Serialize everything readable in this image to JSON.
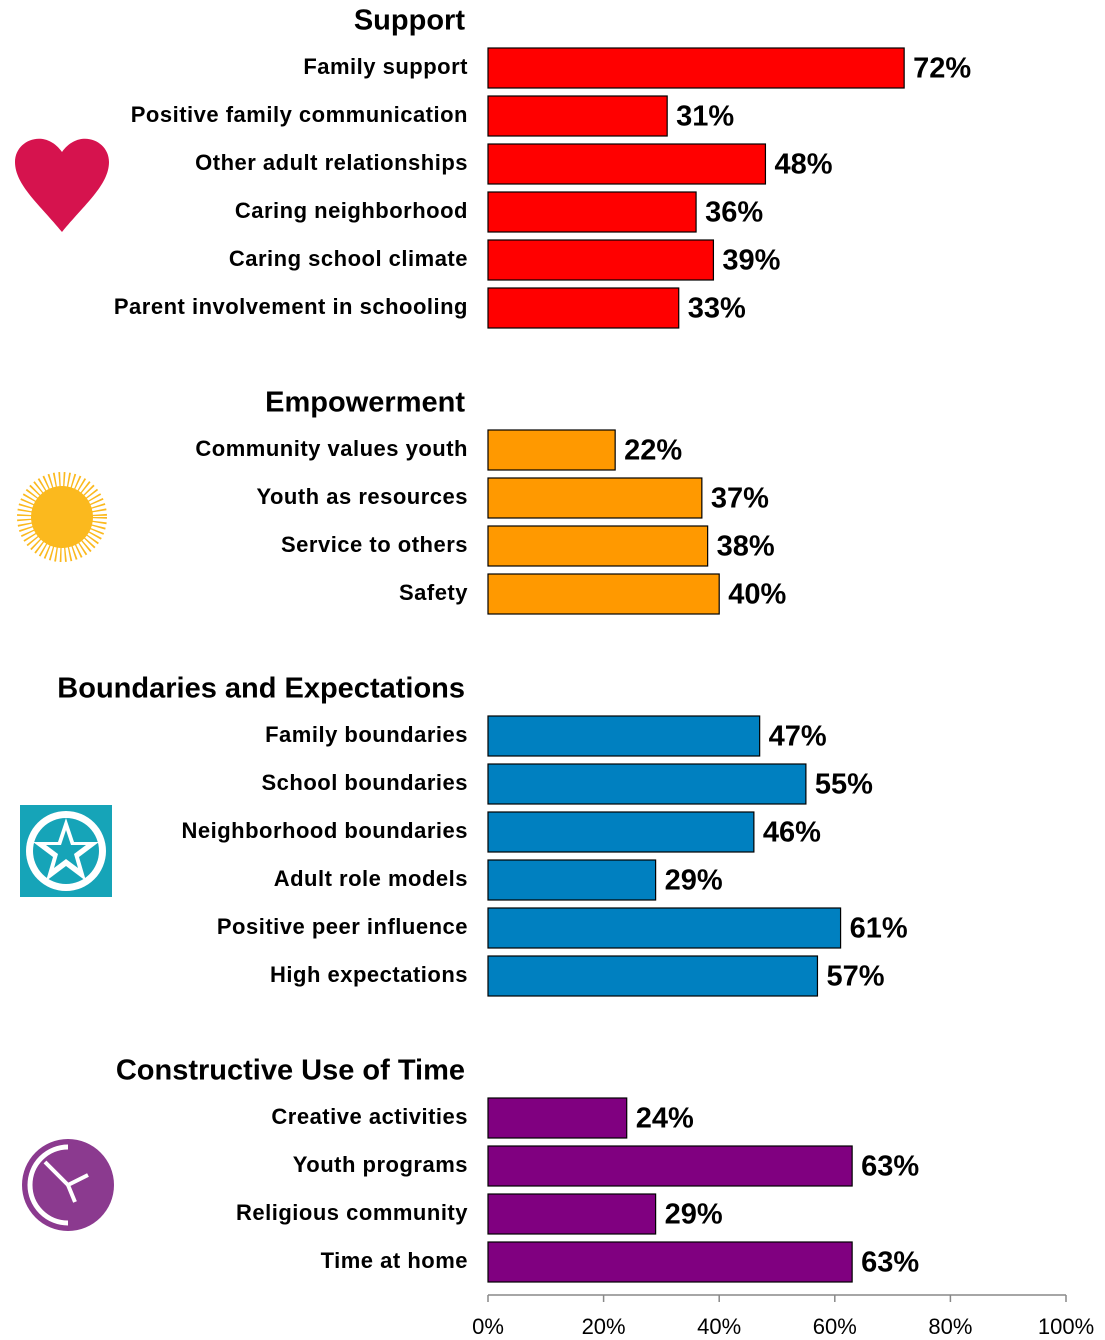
{
  "chart_data": {
    "type": "bar",
    "groups": [
      {
        "title": "Support",
        "color": "#ff0000",
        "categories": [
          "Family support",
          "Positive family communication",
          "Other adult relationships",
          "Caring neighborhood",
          "Caring school climate",
          "Parent involvement in schooling"
        ],
        "values": [
          72,
          31,
          48,
          36,
          39,
          33
        ],
        "value_labels": [
          "72%",
          "31%",
          "48%",
          "36%",
          "39%",
          "33%"
        ]
      },
      {
        "title": "Empowerment",
        "color": "#ff9900",
        "categories": [
          "Community values youth",
          "Youth as resources",
          "Service to others",
          "Safety"
        ],
        "values": [
          22,
          37,
          38,
          40
        ],
        "value_labels": [
          "22%",
          "37%",
          "38%",
          "40%"
        ]
      },
      {
        "title": "Boundaries and Expectations",
        "color": "#0080c0",
        "categories": [
          "Family boundaries",
          "School boundaries",
          "Neighborhood boundaries",
          "Adult role models",
          "Positive peer influence",
          "High expectations"
        ],
        "values": [
          47,
          55,
          46,
          29,
          61,
          57
        ],
        "value_labels": [
          "47%",
          "55%",
          "46%",
          "29%",
          "61%",
          "57%"
        ]
      },
      {
        "title": "Constructive Use of Time",
        "color": "#800080",
        "categories": [
          "Creative activities",
          "Youth programs",
          "Religious community",
          "Time at home"
        ],
        "values": [
          24,
          63,
          29,
          63
        ],
        "value_labels": [
          "24%",
          "63%",
          "29%",
          "63%"
        ]
      }
    ],
    "xlim": [
      0,
      100
    ],
    "xticks": [
      {
        "value": 0,
        "label": "0%"
      },
      {
        "value": 20,
        "label": "20%"
      },
      {
        "value": 40,
        "label": "40%"
      },
      {
        "value": 60,
        "label": "60%"
      },
      {
        "value": 80,
        "label": "80%"
      },
      {
        "value": 100,
        "label": "100%"
      }
    ]
  }
}
